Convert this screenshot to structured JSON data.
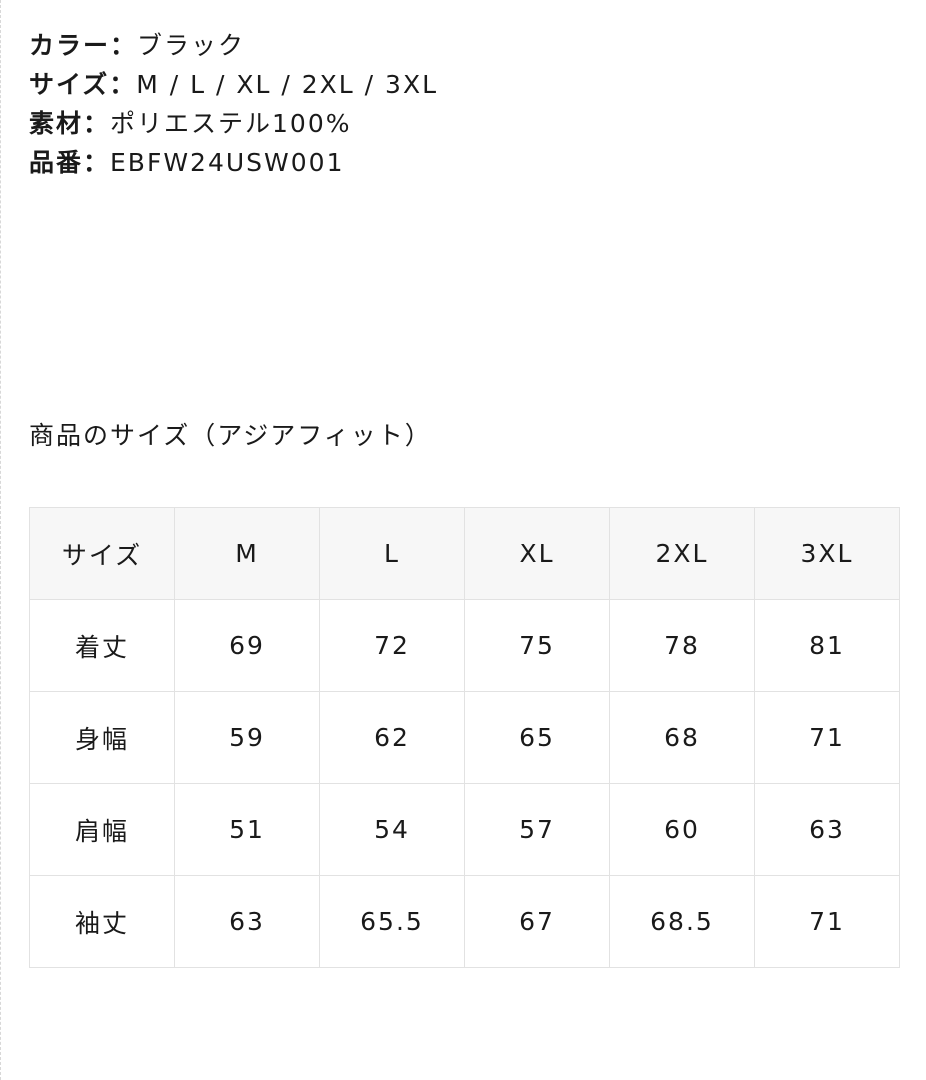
{
  "specs": [
    {
      "label": "カラー：",
      "value": "ブラック"
    },
    {
      "label": "サイズ：",
      "value": "M / L / XL / 2XL / 3XL"
    },
    {
      "label": "素材：",
      "value": "ポリエステル100%"
    },
    {
      "label": "品番：",
      "value": "EBFW24USW001"
    }
  ],
  "size_title": "商品のサイズ（アジアフィット）",
  "table": {
    "header": [
      "サイズ",
      "M",
      "L",
      "XL",
      "2XL",
      "3XL"
    ],
    "rows": [
      [
        "着丈",
        "69",
        "72",
        "75",
        "78",
        "81"
      ],
      [
        "身幅",
        "59",
        "62",
        "65",
        "68",
        "71"
      ],
      [
        "肩幅",
        "51",
        "54",
        "57",
        "60",
        "63"
      ],
      [
        "袖丈",
        "63",
        "65.5",
        "67",
        "68.5",
        "71"
      ]
    ]
  }
}
